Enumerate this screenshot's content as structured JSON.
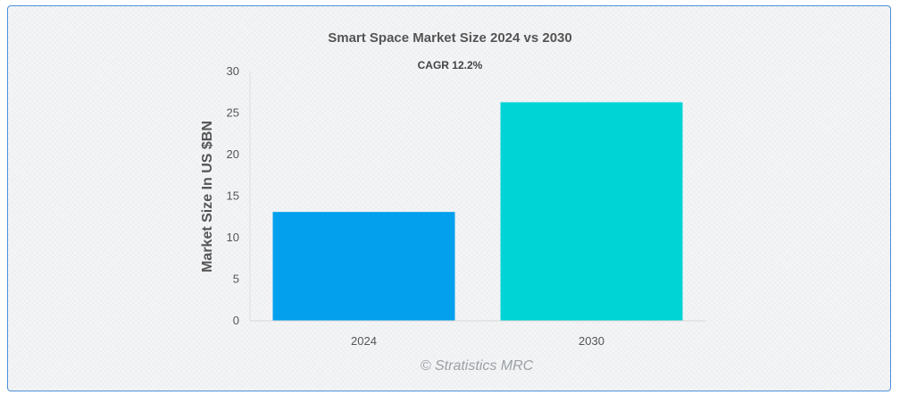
{
  "chart_data": {
    "type": "bar",
    "title": "Smart Space Market Size 2024 vs 2030",
    "subtitle": "CAGR 12.2%",
    "xlabel": "",
    "ylabel": "Market Size In US $BN",
    "categories": [
      "2024",
      "2030"
    ],
    "values": [
      13.1,
      26.3
    ],
    "colors": [
      "#03a0ee",
      "#00d4d4"
    ],
    "ylim": [
      0,
      30
    ],
    "yticks": [
      0,
      5,
      10,
      15,
      20,
      25,
      30
    ],
    "grid": false,
    "legend": "none",
    "credit": "© Stratistics MRC"
  }
}
